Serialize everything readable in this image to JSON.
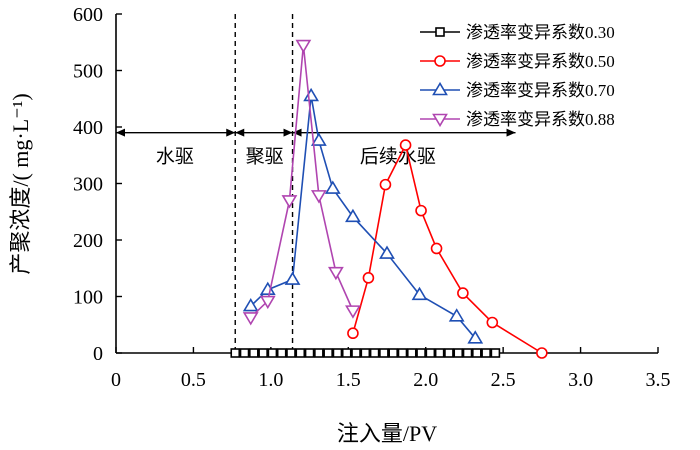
{
  "chart_data": {
    "type": "line",
    "xlabel": "注入量/PV",
    "ylabel": "产聚浓度/( mg·L⁻¹)",
    "xlim": [
      0,
      3.5
    ],
    "ylim": [
      0,
      600
    ],
    "xticks": [
      "0",
      "0.5",
      "1.0",
      "1.5",
      "2.0",
      "2.5",
      "3.0",
      "3.5"
    ],
    "xtick_values": [
      0,
      0.5,
      1.0,
      1.5,
      2.0,
      2.5,
      3.0,
      3.5
    ],
    "yticks": [
      "0",
      "100",
      "200",
      "300",
      "400",
      "500",
      "600"
    ],
    "ytick_values": [
      0,
      100,
      200,
      300,
      400,
      500,
      600
    ],
    "grid": false,
    "legend_position": "top-right",
    "stage_dividers": [
      0.77,
      1.14
    ],
    "stage_arrow_y": 390,
    "stages": [
      {
        "label": "水驱",
        "x_from": 0,
        "x_to": 0.77,
        "label_x": 0.38
      },
      {
        "label": "聚驱",
        "x_from": 0.77,
        "x_to": 1.14,
        "label_x": 0.96
      },
      {
        "label": "后续水驱",
        "x_from": 1.14,
        "x_to": 2.58,
        "label_x": 1.82
      }
    ],
    "series": [
      {
        "name": "渗透率变异系数0.30",
        "color": "#000000",
        "marker": "square",
        "x": [
          0.77,
          0.83,
          0.89,
          0.95,
          1.01,
          1.07,
          1.13,
          1.19,
          1.25,
          1.31,
          1.37,
          1.43,
          1.49,
          1.55,
          1.61,
          1.67,
          1.73,
          1.79,
          1.85,
          1.91,
          1.97,
          2.03,
          2.09,
          2.15,
          2.21,
          2.27,
          2.33,
          2.39,
          2.45
        ],
        "y": [
          0,
          0,
          0,
          0,
          0,
          0,
          0,
          0,
          0,
          0,
          0,
          0,
          0,
          0,
          0,
          0,
          0,
          0,
          0,
          0,
          0,
          0,
          0,
          0,
          0,
          0,
          0,
          0,
          0
        ]
      },
      {
        "name": "渗透率变异系数0.50",
        "color": "#ff0000",
        "marker": "circle",
        "x": [
          1.53,
          1.63,
          1.74,
          1.87,
          1.97,
          2.07,
          2.24,
          2.43,
          2.75
        ],
        "y": [
          35,
          133,
          298,
          368,
          252,
          185,
          106,
          54,
          0
        ]
      },
      {
        "name": "渗透率变异系数0.70",
        "color": "#1f4fb4",
        "marker": "triangle-up",
        "x": [
          0.87,
          0.98,
          1.14,
          1.26,
          1.31,
          1.4,
          1.53,
          1.75,
          1.96,
          2.2,
          2.32
        ],
        "y": [
          83,
          112,
          130,
          455,
          376,
          291,
          241,
          176,
          103,
          65,
          26
        ]
      },
      {
        "name": "渗透率变异系数0.88",
        "color": "#b045b0",
        "marker": "triangle-down",
        "x": [
          0.87,
          0.98,
          1.12,
          1.21,
          1.31,
          1.42,
          1.53
        ],
        "y": [
          63,
          92,
          270,
          545,
          279,
          143,
          75
        ]
      }
    ]
  }
}
